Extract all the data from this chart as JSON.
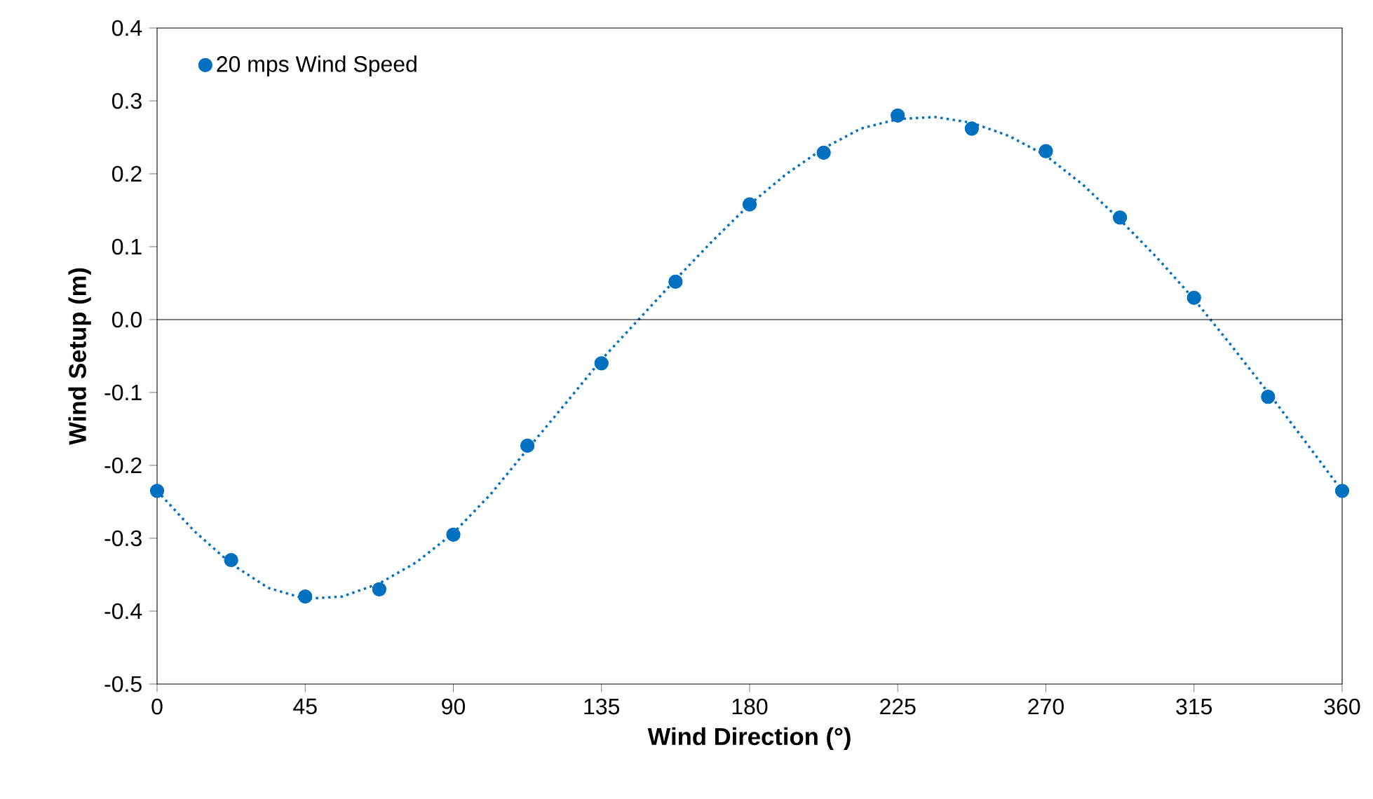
{
  "chart_data": {
    "type": "scatter",
    "xlabel": "Wind Direction (°)",
    "ylabel": "Wind Setup (m)",
    "xlim": [
      0,
      360
    ],
    "xticks": [
      0,
      45,
      90,
      135,
      180,
      225,
      270,
      315,
      360
    ],
    "ylim": [
      -0.5,
      0.4
    ],
    "yticks": [
      -0.5,
      -0.4,
      -0.3,
      -0.2,
      -0.1,
      {
        "value": 0,
        "label": "0.0"
      },
      0.1,
      0.2,
      0.3,
      0.4
    ],
    "legend": "top left",
    "grid": false,
    "marker": "circle",
    "ref_lines": [
      {
        "axis": "y",
        "value": 0,
        "color": "#000000",
        "line_style": "solid"
      }
    ],
    "series": [
      {
        "name": "20 mps Wind Speed",
        "color": "#0070c0",
        "x": [
          0,
          22.5,
          45,
          67.5,
          90,
          112.5,
          135,
          157.5,
          180,
          202.5,
          225,
          247.5,
          270,
          292.5,
          315,
          337.5,
          360
        ],
        "values": [
          -0.235,
          -0.33,
          -0.38,
          -0.37,
          -0.295,
          -0.173,
          -0.06,
          0.052,
          0.158,
          0.229,
          0.28,
          0.262,
          0.231,
          0.14,
          0.03,
          -0.106,
          -0.235
        ]
      },
      {
        "type": "line",
        "color": "#0070c0",
        "line_style": "dotted",
        "marker": "none",
        "x": [
          0,
          11.25,
          22.5,
          33.75,
          45,
          56.25,
          67.5,
          78.75,
          90,
          101.25,
          112.5,
          123.75,
          135,
          146.25,
          157.5,
          168.75,
          180,
          191.25,
          202.5,
          213.75,
          225,
          236.25,
          247.5,
          258.75,
          270,
          281.25,
          292.5,
          303.75,
          315,
          326.25,
          337.5,
          348.75,
          360
        ],
        "values": [
          -0.235,
          -0.29,
          -0.335,
          -0.368,
          -0.383,
          -0.38,
          -0.362,
          -0.333,
          -0.293,
          -0.24,
          -0.178,
          -0.117,
          -0.055,
          0.0,
          0.055,
          0.108,
          0.158,
          0.2,
          0.235,
          0.262,
          0.275,
          0.278,
          0.27,
          0.252,
          0.225,
          0.185,
          0.137,
          0.085,
          0.028,
          -0.035,
          -0.1,
          -0.167,
          -0.235
        ]
      }
    ]
  }
}
